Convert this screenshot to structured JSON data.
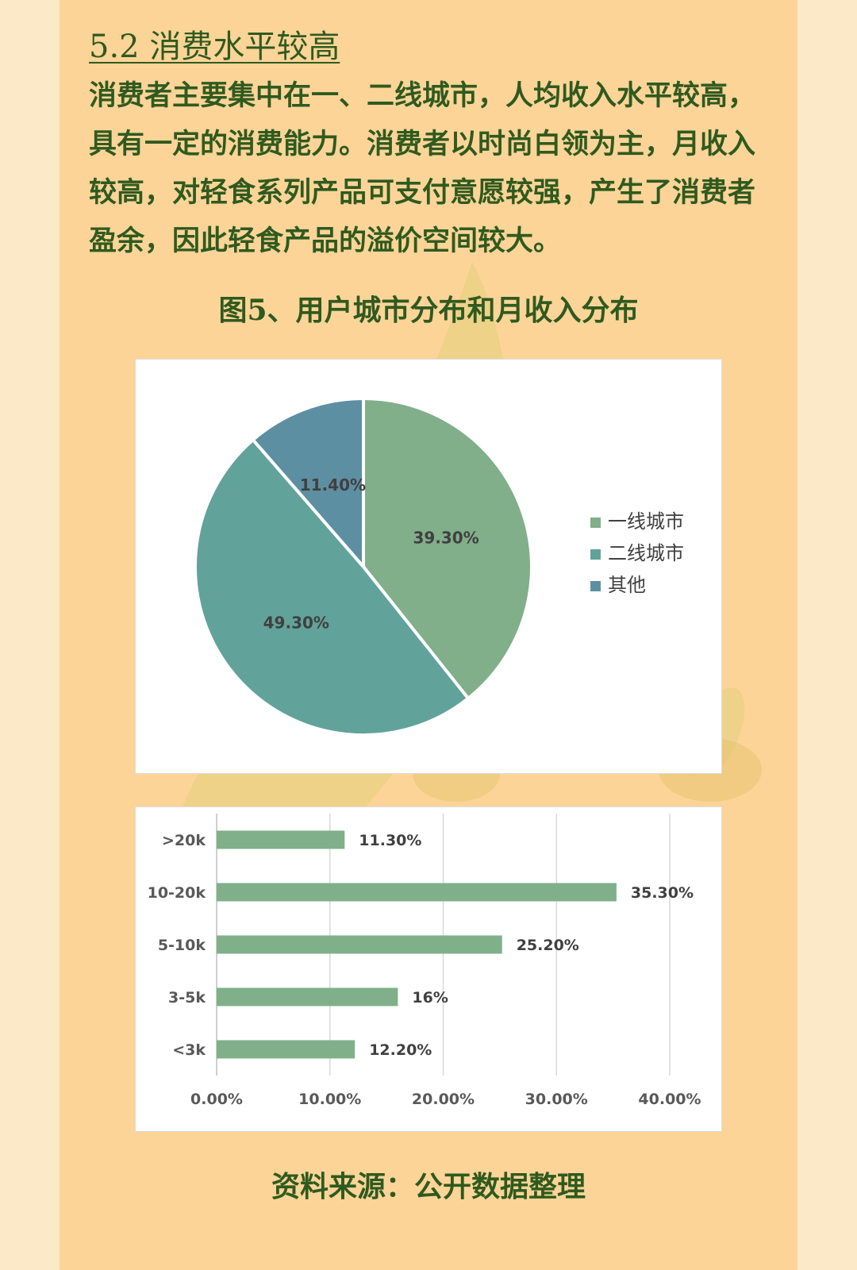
{
  "section": {
    "heading": "5.2 消费水平较高",
    "paragraph": "消费者主要集中在一、二线城市，人均收入水平较高，具有一定的消费能力。消费者以时尚白领为主，月收入较高，对轻食系列产品可支付意愿较强，产生了消费者盈余，因此轻食产品的溢价空间较大。"
  },
  "figure": {
    "caption": "图5、用户城市分布和月收入分布",
    "source": "资料来源：公开数据整理"
  },
  "colors": {
    "panel_bg": "#fdd497",
    "text": "#2f5a1f",
    "bar": "#7fb08a"
  },
  "chart_data": [
    {
      "type": "pie",
      "title": "",
      "legend_position": "right",
      "slices": [
        {
          "label": "一线城市",
          "value": 39.3,
          "display": "39.30%",
          "color": "#80af89"
        },
        {
          "label": "二线城市",
          "value": 49.3,
          "display": "49.30%",
          "color": "#61a39b"
        },
        {
          "label": "其他",
          "value": 11.4,
          "display": "11.40%",
          "color": "#5d8fa3"
        }
      ]
    },
    {
      "type": "bar",
      "orientation": "horizontal",
      "title": "",
      "xlabel": "",
      "ylabel": "",
      "categories": [
        ">20k",
        "10-20k",
        "5-10k",
        "3-5k",
        "<3k"
      ],
      "values": [
        11.3,
        35.3,
        25.2,
        16,
        12.2
      ],
      "value_labels": [
        "11.30%",
        "35.30%",
        "25.20%",
        "16%",
        "12.20%"
      ],
      "xlim": [
        0,
        40
      ],
      "x_ticks": [
        "0.00%",
        "10.00%",
        "20.00%",
        "30.00%",
        "40.00%"
      ],
      "grid": "vertical"
    }
  ]
}
